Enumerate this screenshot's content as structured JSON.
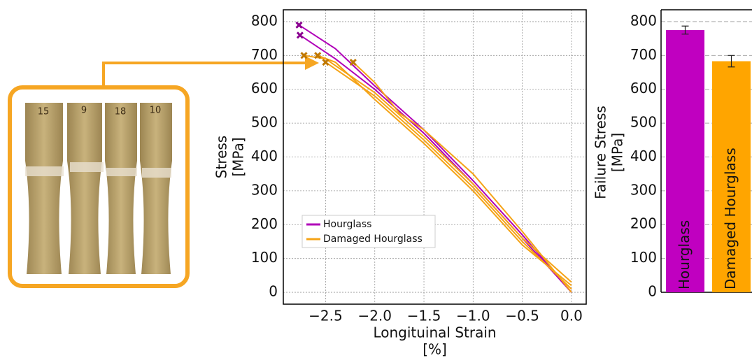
{
  "photo": {
    "labels": [
      "15",
      "9",
      "18",
      "10"
    ]
  },
  "chart_data": [
    {
      "type": "line",
      "xlabel": [
        "Longituinal Strain",
        "[%]"
      ],
      "ylabel": [
        "Stress",
        "[MPa]"
      ],
      "xlim": [
        -2.93,
        0.15
      ],
      "ylim": [
        -35,
        835
      ],
      "xticks": [
        {
          "value": -2.5,
          "label": "−2.5"
        },
        {
          "value": -2.0,
          "label": "−2.0"
        },
        {
          "value": -1.5,
          "label": "−1.5"
        },
        {
          "value": -1.0,
          "label": "−1.0"
        },
        {
          "value": -0.5,
          "label": "−0.5"
        },
        {
          "value": 0.0,
          "label": "0.0"
        }
      ],
      "yticks": [
        0,
        100,
        200,
        300,
        400,
        500,
        600,
        700,
        800
      ],
      "grid": true,
      "legend": "lower-left",
      "series": [
        {
          "name": "Hourglass",
          "color": "#b000b8",
          "lines": [
            {
              "x": [
                0,
                -0.5,
                -1.0,
                -1.5,
                -2.0,
                -2.4,
                -2.77
              ],
              "values": [
                0,
                170,
                330,
                480,
                610,
                720,
                790
              ]
            },
            {
              "x": [
                0,
                -0.5,
                -1.0,
                -1.5,
                -2.0,
                -2.4,
                -2.76
              ],
              "values": [
                0,
                160,
                320,
                470,
                600,
                690,
                760
              ]
            }
          ],
          "failure": {
            "x": [
              -2.77,
              -2.76
            ],
            "values": [
              790,
              760
            ]
          }
        },
        {
          "name": "Damaged Hourglass",
          "color": "#f5a316",
          "lines": [
            {
              "x": [
                0,
                -0.5,
                -1.0,
                -1.5,
                -1.75,
                -2.0,
                -2.22
              ],
              "values": [
                0,
                180,
                350,
                480,
                530,
                620,
                680
              ]
            },
            {
              "x": [
                0,
                -0.5,
                -1.0,
                -1.5,
                -2.0,
                -2.4,
                -2.5
              ],
              "values": [
                10,
                150,
                310,
                450,
                580,
                660,
                680
              ]
            },
            {
              "x": [
                0,
                -0.5,
                -1.0,
                -1.5,
                -2.0,
                -2.4,
                -2.58
              ],
              "values": [
                20,
                140,
                300,
                440,
                570,
                680,
                700
              ]
            },
            {
              "x": [
                0,
                -0.5,
                -1.0,
                -1.5,
                -2.0,
                -2.5,
                -2.72
              ],
              "values": [
                30,
                160,
                320,
                460,
                590,
                690,
                700
              ]
            }
          ],
          "failure": {
            "x": [
              -2.72,
              -2.58,
              -2.5,
              -2.22
            ],
            "values": [
              700,
              700,
              680,
              680
            ]
          }
        }
      ]
    },
    {
      "type": "bar",
      "ylabel": [
        "Failure Stress",
        "[MPa]"
      ],
      "categories": [
        "Hourglass",
        "Damaged Hourglass"
      ],
      "values": [
        775,
        683
      ],
      "errors": [
        12,
        17
      ],
      "colors": [
        "#c000c0",
        "#ffa500"
      ],
      "ylim": [
        0,
        835
      ],
      "yticks": [
        0,
        100,
        200,
        300,
        400,
        500,
        600,
        700,
        800
      ],
      "grid": true
    }
  ]
}
